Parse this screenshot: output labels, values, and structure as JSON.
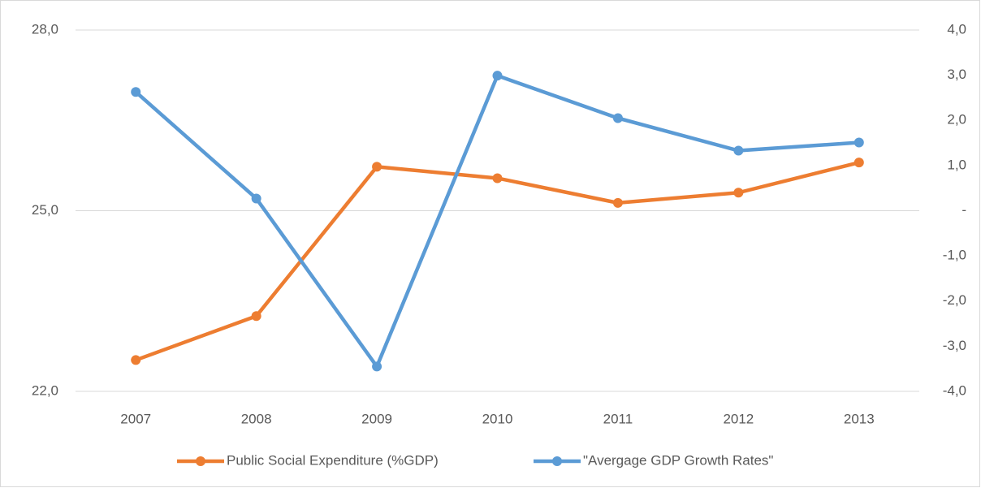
{
  "chart_data": {
    "type": "line",
    "categories": [
      "2007",
      "2008",
      "2009",
      "2010",
      "2011",
      "2012",
      "2013"
    ],
    "series": [
      {
        "name": "Public Social Expenditure (%GDP)",
        "color": "#ed7d31",
        "values": [
          22.52,
          23.25,
          25.73,
          25.54,
          25.13,
          25.3,
          25.8
        ]
      },
      {
        "name": "\"Avergage GDP Growth Rates\"",
        "color": "#5b9bd5",
        "axis": "y2",
        "values": [
          2.63,
          0.27,
          -3.45,
          2.99,
          2.05,
          1.33,
          1.51
        ]
      }
    ],
    "ylim": [
      22,
      28
    ],
    "yticks": [
      {
        "value": 22,
        "label": "22,0"
      },
      {
        "value": 25,
        "label": "25,0"
      },
      {
        "value": 28,
        "label": "28,0"
      }
    ],
    "y2lim": [
      -4,
      4
    ],
    "y2ticks": [
      {
        "value": -4,
        "label": "-4,0"
      },
      {
        "value": -3,
        "label": "-3,0"
      },
      {
        "value": -2,
        "label": "-2,0"
      },
      {
        "value": -1,
        "label": "-1,0"
      },
      {
        "value": 0,
        "label": "-"
      },
      {
        "value": 1,
        "label": "1,0"
      },
      {
        "value": 2,
        "label": "2,0"
      },
      {
        "value": 3,
        "label": "3,0"
      },
      {
        "value": 4,
        "label": "4,0"
      }
    ],
    "grid": true,
    "legend": "bottom"
  }
}
